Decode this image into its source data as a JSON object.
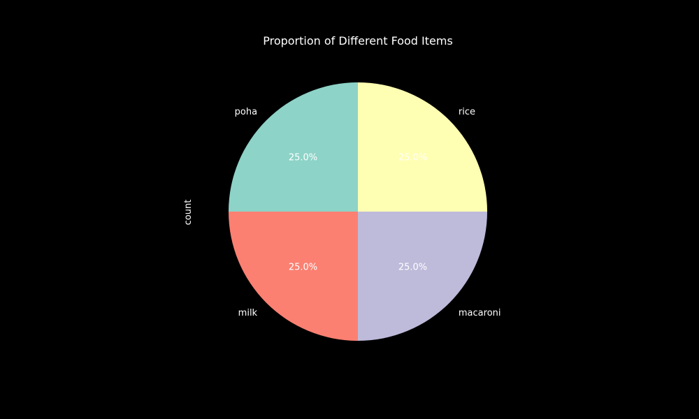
{
  "chart_data": {
    "type": "pie",
    "title": "Proportion of Different Food Items",
    "ylabel": "count",
    "slices": [
      {
        "label": "poha",
        "value": 25.0,
        "pct_label": "25.0%",
        "color": "#8dd3c7"
      },
      {
        "label": "milk",
        "value": 25.0,
        "pct_label": "25.0%",
        "color": "#fb8072"
      },
      {
        "label": "macaroni",
        "value": 25.0,
        "pct_label": "25.0%",
        "color": "#bebada"
      },
      {
        "label": "rice",
        "value": 25.0,
        "pct_label": "25.0%",
        "color": "#ffffb3"
      }
    ],
    "start_angle_deg": 90,
    "direction": "counterclockwise",
    "background_color": "#000000",
    "text_color": "#ffffff"
  }
}
